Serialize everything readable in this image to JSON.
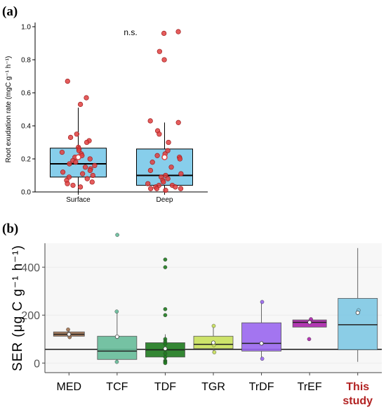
{
  "figure": {
    "panel_a_label": "(a)",
    "panel_b_label": "(b)"
  },
  "chart_data": [
    {
      "type": "box",
      "panel": "(a)",
      "title": "",
      "annotation": "n.s.",
      "ylabel": "Root exudation rate (mgC g⁻¹ h⁻¹)",
      "ylim": [
        0,
        1.0
      ],
      "yticks": [
        "0.0",
        "0.2",
        "0.4",
        "0.6",
        "0.8",
        "1.0"
      ],
      "categories": [
        "Surface",
        "Deep"
      ],
      "box_color": "#87ceeb",
      "point_color": "#e04040",
      "boxes": [
        {
          "category": "Surface",
          "q1": 0.09,
          "median": 0.17,
          "q3": 0.265,
          "whisker_low": 0.0,
          "whisker_high": 0.51,
          "mean": 0.21
        },
        {
          "category": "Deep",
          "q1": 0.04,
          "median": 0.1,
          "q3": 0.26,
          "whisker_low": 0.0,
          "whisker_high": 0.42,
          "mean": 0.21
        }
      ],
      "points": [
        {
          "category": "Surface",
          "values": [
            0.67,
            0.57,
            0.53,
            0.35,
            0.33,
            0.31,
            0.3,
            0.27,
            0.26,
            0.25,
            0.24,
            0.23,
            0.22,
            0.21,
            0.2,
            0.19,
            0.18,
            0.17,
            0.16,
            0.15,
            0.14,
            0.13,
            0.12,
            0.11,
            0.1,
            0.09,
            0.08,
            0.07,
            0.06,
            0.05,
            0.04,
            0.03
          ]
        },
        {
          "category": "Deep",
          "values": [
            0.97,
            0.96,
            0.85,
            0.8,
            0.43,
            0.42,
            0.37,
            0.35,
            0.3,
            0.25,
            0.23,
            0.22,
            0.21,
            0.2,
            0.18,
            0.15,
            0.13,
            0.11,
            0.1,
            0.09,
            0.08,
            0.07,
            0.06,
            0.05,
            0.04,
            0.04,
            0.03,
            0.03,
            0.02,
            0.02,
            0.02,
            0.01
          ]
        }
      ]
    },
    {
      "type": "box",
      "panel": "(b)",
      "title": "",
      "ylabel": "SER (μg C g⁻¹ h⁻¹)",
      "ylim": [
        -40,
        500
      ],
      "yticks": [
        "0",
        "200",
        "400"
      ],
      "reference_line": 57,
      "categories": [
        "MED",
        "TCF",
        "TDF",
        "TGR",
        "TrDF",
        "TrEF",
        "This study"
      ],
      "highlight_category": "This study",
      "highlight_color": "#b22222",
      "boxes": [
        {
          "category": "MED",
          "color": "#a0714f",
          "q1": 112,
          "median": 120,
          "q3": 130,
          "whisker_low": 108,
          "whisker_high": 138,
          "mean": 120
        },
        {
          "category": "TCF",
          "color": "#66bb99",
          "q1": 15,
          "median": 50,
          "q3": 112,
          "whisker_low": 5,
          "whisker_high": 215,
          "mean": 110
        },
        {
          "category": "TDF",
          "color": "#1e7a1e",
          "q1": 25,
          "median": 55,
          "q3": 85,
          "whisker_low": 0,
          "whisker_high": 120,
          "mean": 60
        },
        {
          "category": "TGR",
          "color": "#c8e05a",
          "q1": 60,
          "median": 78,
          "q3": 112,
          "whisker_low": 40,
          "whisker_high": 155,
          "mean": 85
        },
        {
          "category": "TrDF",
          "color": "#9966ee",
          "q1": 50,
          "median": 82,
          "q3": 168,
          "whisker_low": 18,
          "whisker_high": 255,
          "mean": 82
        },
        {
          "category": "TrEF",
          "color": "#aa22aa",
          "q1": 150,
          "median": 170,
          "q3": 180,
          "whisker_low": 150,
          "whisker_high": 183,
          "mean": 170
        },
        {
          "category": "This study",
          "color": "#7ec8e3",
          "q1": 55,
          "median": 160,
          "q3": 270,
          "whisker_low": 5,
          "whisker_high": 480,
          "mean": 210
        }
      ],
      "points": [
        {
          "category": "MED",
          "values": [
            140,
            108
          ]
        },
        {
          "category": "TCF",
          "values": [
            535,
            215,
            5
          ]
        },
        {
          "category": "TDF",
          "values": [
            432,
            400,
            225,
            200,
            100,
            90,
            80,
            60,
            55,
            40,
            25,
            10,
            5,
            0
          ]
        },
        {
          "category": "TGR",
          "values": [
            155,
            75,
            45
          ]
        },
        {
          "category": "TrDF",
          "values": [
            255,
            82,
            18
          ]
        },
        {
          "category": "TrEF",
          "values": [
            183,
            100
          ]
        },
        {
          "category": "This study",
          "values": [
            220,
            210
          ]
        }
      ]
    }
  ]
}
